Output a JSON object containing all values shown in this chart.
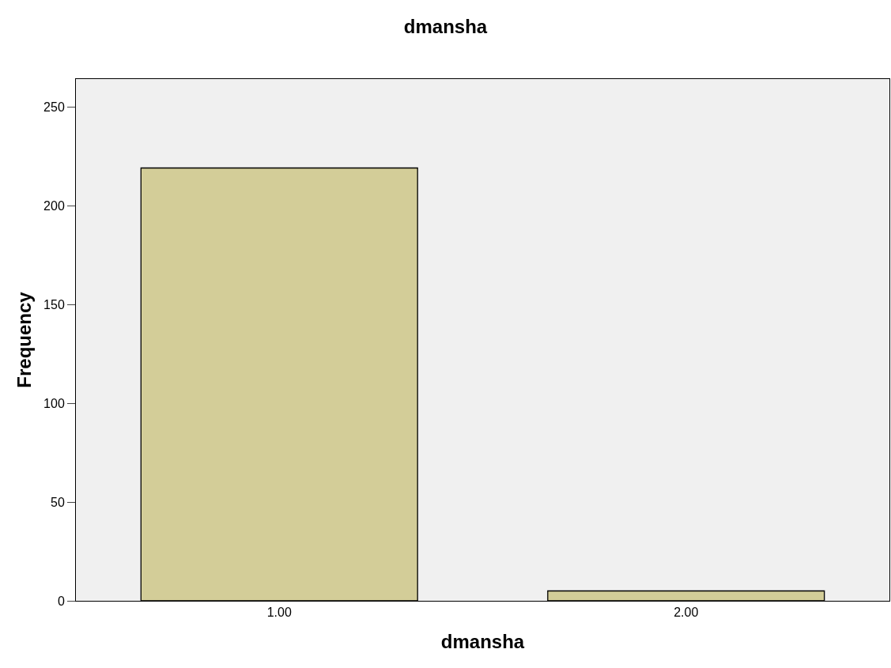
{
  "chart_data": {
    "type": "bar",
    "title": "dmansha",
    "xlabel": "dmansha",
    "ylabel": "Frequency",
    "categories": [
      "1.00",
      "2.00"
    ],
    "values": [
      219,
      5
    ],
    "color": "#d3cd98",
    "ylim": [
      0,
      264
    ],
    "yticks": [
      0,
      50,
      100,
      150,
      200,
      250
    ],
    "grid": false,
    "legend": false
  }
}
